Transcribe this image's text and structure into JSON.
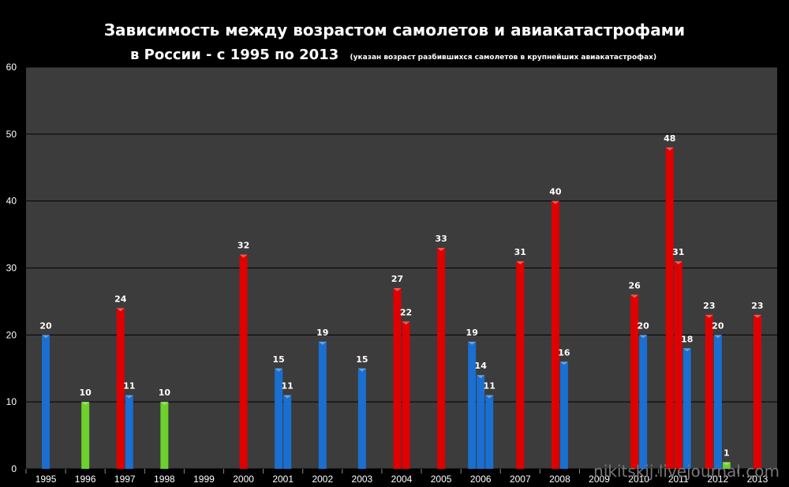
{
  "chart_data": {
    "type": "bar",
    "title_line1": "Зависимость между возрастом самолетов и авиакатастрофами",
    "title_line2": "в России - с 1995 по 2013",
    "subtitle": "(указан  возраст  разбившихся  самолетов  в крупнейших  авиакатастрофах)",
    "watermark": "nikitskij.livejournal.com",
    "ylim": [
      0,
      60
    ],
    "yticks": [
      0,
      10,
      20,
      30,
      40,
      50,
      60
    ],
    "grid": true,
    "categories": [
      "1995",
      "1996",
      "1997",
      "1998",
      "1999",
      "2000",
      "2001",
      "2002",
      "2003",
      "2004",
      "2005",
      "2006",
      "2007",
      "2008",
      "2009",
      "2010",
      "2011",
      "2012",
      "2013"
    ],
    "colors": {
      "red": "#e00000",
      "blue": "#1a6fd0",
      "green": "#6cd12a",
      "background": "#3c3c3c"
    },
    "bars": [
      {
        "year": "1995",
        "value": 20,
        "color": "blue"
      },
      {
        "year": "1996",
        "value": 10,
        "color": "green"
      },
      {
        "year": "1997",
        "value": 24,
        "color": "red"
      },
      {
        "year": "1997",
        "value": 11,
        "color": "blue"
      },
      {
        "year": "1998",
        "value": 10,
        "color": "green"
      },
      {
        "year": "2000",
        "value": 32,
        "color": "red"
      },
      {
        "year": "2001",
        "value": 15,
        "color": "blue"
      },
      {
        "year": "2001",
        "value": 11,
        "color": "blue"
      },
      {
        "year": "2002",
        "value": 19,
        "color": "blue"
      },
      {
        "year": "2003",
        "value": 15,
        "color": "blue"
      },
      {
        "year": "2004",
        "value": 27,
        "color": "red"
      },
      {
        "year": "2004",
        "value": 22,
        "color": "red"
      },
      {
        "year": "2005",
        "value": 33,
        "color": "red"
      },
      {
        "year": "2006",
        "value": 19,
        "color": "blue"
      },
      {
        "year": "2006",
        "value": 14,
        "color": "blue"
      },
      {
        "year": "2006",
        "value": 11,
        "color": "blue"
      },
      {
        "year": "2007",
        "value": 31,
        "color": "red"
      },
      {
        "year": "2008",
        "value": 40,
        "color": "red"
      },
      {
        "year": "2008",
        "value": 16,
        "color": "blue"
      },
      {
        "year": "2010",
        "value": 26,
        "color": "red"
      },
      {
        "year": "2010",
        "value": 20,
        "color": "blue"
      },
      {
        "year": "2011",
        "value": 48,
        "color": "red"
      },
      {
        "year": "2011",
        "value": 31,
        "color": "red"
      },
      {
        "year": "2011",
        "value": 18,
        "color": "blue"
      },
      {
        "year": "2012",
        "value": 23,
        "color": "red"
      },
      {
        "year": "2012",
        "value": 20,
        "color": "blue"
      },
      {
        "year": "2012",
        "value": 1,
        "color": "green"
      },
      {
        "year": "2013",
        "value": 23,
        "color": "red"
      }
    ]
  }
}
